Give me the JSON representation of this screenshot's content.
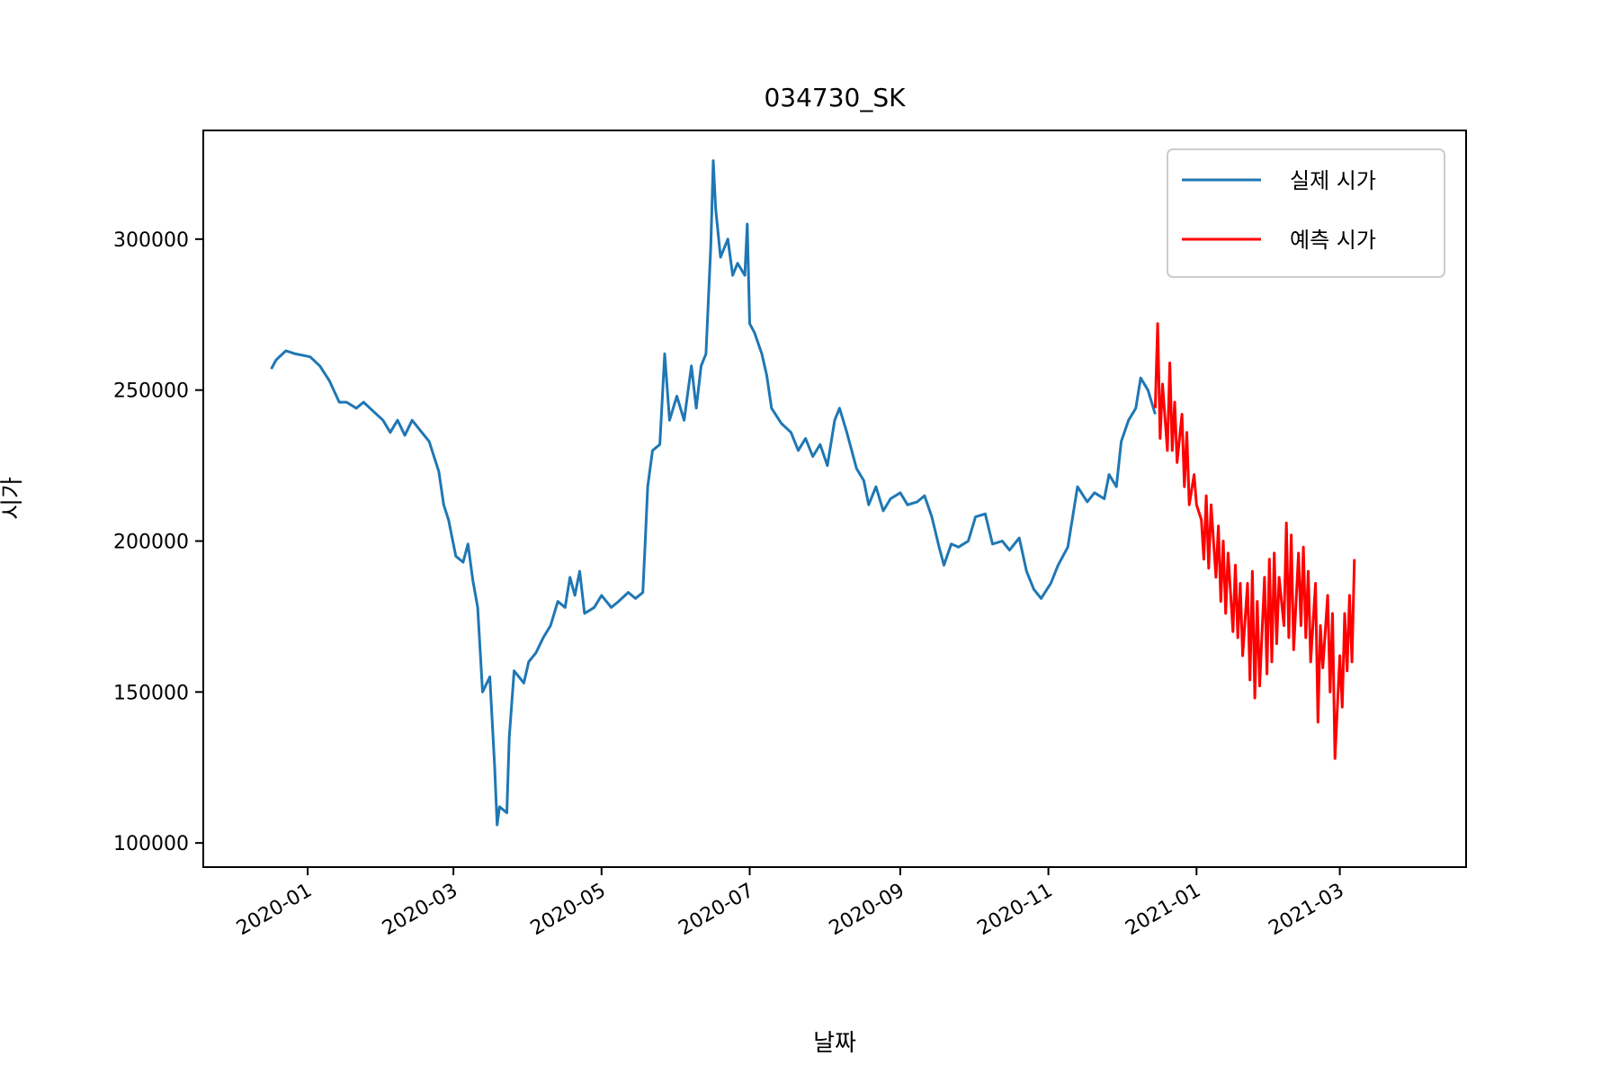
{
  "chart_data": {
    "type": "line",
    "title": "034730_SK",
    "xlabel": "날짜",
    "ylabel": "시가",
    "grid": false,
    "legend_position": "top-right",
    "x_type": "date",
    "xlim": [
      "2019-11-19",
      "2021-04-22"
    ],
    "ylim": [
      92000,
      336000
    ],
    "x_ticks": [
      "2020-01",
      "2020-03",
      "2020-05",
      "2020-07",
      "2020-09",
      "2020-11",
      "2021-01",
      "2021-03"
    ],
    "y_ticks": [
      100000,
      150000,
      200000,
      250000,
      300000
    ],
    "series": [
      {
        "name": "실제 시가",
        "color": "#1f77b4",
        "points": [
          [
            "2019-12-17",
            257000
          ],
          [
            "2019-12-19",
            260000
          ],
          [
            "2019-12-23",
            263000
          ],
          [
            "2019-12-27",
            262000
          ],
          [
            "2020-01-02",
            261000
          ],
          [
            "2020-01-06",
            258000
          ],
          [
            "2020-01-10",
            253000
          ],
          [
            "2020-01-14",
            246000
          ],
          [
            "2020-01-17",
            246000
          ],
          [
            "2020-01-21",
            244000
          ],
          [
            "2020-01-24",
            246000
          ],
          [
            "2020-01-28",
            243000
          ],
          [
            "2020-02-01",
            240000
          ],
          [
            "2020-02-04",
            236000
          ],
          [
            "2020-02-07",
            240000
          ],
          [
            "2020-02-10",
            235000
          ],
          [
            "2020-02-13",
            240000
          ],
          [
            "2020-02-17",
            236000
          ],
          [
            "2020-02-20",
            233000
          ],
          [
            "2020-02-24",
            223000
          ],
          [
            "2020-02-26",
            212000
          ],
          [
            "2020-02-28",
            207000
          ],
          [
            "2020-03-02",
            195000
          ],
          [
            "2020-03-05",
            193000
          ],
          [
            "2020-03-07",
            199000
          ],
          [
            "2020-03-09",
            187000
          ],
          [
            "2020-03-11",
            178000
          ],
          [
            "2020-03-13",
            150000
          ],
          [
            "2020-03-16",
            155000
          ],
          [
            "2020-03-17",
            140000
          ],
          [
            "2020-03-18",
            125000
          ],
          [
            "2020-03-19",
            106000
          ],
          [
            "2020-03-20",
            112000
          ],
          [
            "2020-03-23",
            110000
          ],
          [
            "2020-03-24",
            135000
          ],
          [
            "2020-03-26",
            157000
          ],
          [
            "2020-03-30",
            153000
          ],
          [
            "2020-04-01",
            160000
          ],
          [
            "2020-04-04",
            163000
          ],
          [
            "2020-04-07",
            168000
          ],
          [
            "2020-04-10",
            172000
          ],
          [
            "2020-04-13",
            180000
          ],
          [
            "2020-04-16",
            178000
          ],
          [
            "2020-04-18",
            188000
          ],
          [
            "2020-04-20",
            182000
          ],
          [
            "2020-04-22",
            190000
          ],
          [
            "2020-04-24",
            176000
          ],
          [
            "2020-04-28",
            178000
          ],
          [
            "2020-05-01",
            182000
          ],
          [
            "2020-05-05",
            178000
          ],
          [
            "2020-05-08",
            180000
          ],
          [
            "2020-05-12",
            183000
          ],
          [
            "2020-05-15",
            181000
          ],
          [
            "2020-05-18",
            183000
          ],
          [
            "2020-05-19",
            200000
          ],
          [
            "2020-05-20",
            218000
          ],
          [
            "2020-05-22",
            230000
          ],
          [
            "2020-05-25",
            232000
          ],
          [
            "2020-05-27",
            262000
          ],
          [
            "2020-05-29",
            240000
          ],
          [
            "2020-06-01",
            248000
          ],
          [
            "2020-06-04",
            240000
          ],
          [
            "2020-06-07",
            258000
          ],
          [
            "2020-06-09",
            244000
          ],
          [
            "2020-06-11",
            258000
          ],
          [
            "2020-06-13",
            262000
          ],
          [
            "2020-06-15",
            298000
          ],
          [
            "2020-06-16",
            326000
          ],
          [
            "2020-06-17",
            310000
          ],
          [
            "2020-06-19",
            294000
          ],
          [
            "2020-06-22",
            300000
          ],
          [
            "2020-06-24",
            288000
          ],
          [
            "2020-06-26",
            292000
          ],
          [
            "2020-06-29",
            288000
          ],
          [
            "2020-06-30",
            305000
          ],
          [
            "2020-07-01",
            272000
          ],
          [
            "2020-07-03",
            269000
          ],
          [
            "2020-07-06",
            262000
          ],
          [
            "2020-07-08",
            255000
          ],
          [
            "2020-07-10",
            244000
          ],
          [
            "2020-07-14",
            239000
          ],
          [
            "2020-07-18",
            236000
          ],
          [
            "2020-07-21",
            230000
          ],
          [
            "2020-07-24",
            234000
          ],
          [
            "2020-07-27",
            228000
          ],
          [
            "2020-07-30",
            232000
          ],
          [
            "2020-08-02",
            225000
          ],
          [
            "2020-08-05",
            240000
          ],
          [
            "2020-08-07",
            244000
          ],
          [
            "2020-08-10",
            236000
          ],
          [
            "2020-08-12",
            230000
          ],
          [
            "2020-08-14",
            224000
          ],
          [
            "2020-08-17",
            220000
          ],
          [
            "2020-08-19",
            212000
          ],
          [
            "2020-08-22",
            218000
          ],
          [
            "2020-08-25",
            210000
          ],
          [
            "2020-08-28",
            214000
          ],
          [
            "2020-09-01",
            216000
          ],
          [
            "2020-09-04",
            212000
          ],
          [
            "2020-09-08",
            213000
          ],
          [
            "2020-09-11",
            215000
          ],
          [
            "2020-09-14",
            208000
          ],
          [
            "2020-09-17",
            198000
          ],
          [
            "2020-09-19",
            192000
          ],
          [
            "2020-09-22",
            199000
          ],
          [
            "2020-09-25",
            198000
          ],
          [
            "2020-09-29",
            200000
          ],
          [
            "2020-10-02",
            208000
          ],
          [
            "2020-10-06",
            209000
          ],
          [
            "2020-10-09",
            199000
          ],
          [
            "2020-10-13",
            200000
          ],
          [
            "2020-10-16",
            197000
          ],
          [
            "2020-10-20",
            201000
          ],
          [
            "2020-10-23",
            190000
          ],
          [
            "2020-10-26",
            184000
          ],
          [
            "2020-10-29",
            181000
          ],
          [
            "2020-11-02",
            186000
          ],
          [
            "2020-11-05",
            192000
          ],
          [
            "2020-11-09",
            198000
          ],
          [
            "2020-11-11",
            208000
          ],
          [
            "2020-11-13",
            218000
          ],
          [
            "2020-11-17",
            213000
          ],
          [
            "2020-11-20",
            216000
          ],
          [
            "2020-11-24",
            214000
          ],
          [
            "2020-11-26",
            222000
          ],
          [
            "2020-11-29",
            218000
          ],
          [
            "2020-12-01",
            233000
          ],
          [
            "2020-12-04",
            240000
          ],
          [
            "2020-12-07",
            244000
          ],
          [
            "2020-12-09",
            254000
          ],
          [
            "2020-12-12",
            250000
          ],
          [
            "2020-12-15",
            242000
          ]
        ]
      },
      {
        "name": "예측 시가",
        "color": "#ff0000",
        "points": [
          [
            "2020-12-15",
            244000
          ],
          [
            "2020-12-16",
            272000
          ],
          [
            "2020-12-17",
            234000
          ],
          [
            "2020-12-18",
            252000
          ],
          [
            "2020-12-20",
            230000
          ],
          [
            "2020-12-21",
            259000
          ],
          [
            "2020-12-22",
            230000
          ],
          [
            "2020-12-23",
            246000
          ],
          [
            "2020-12-24",
            226000
          ],
          [
            "2020-12-26",
            242000
          ],
          [
            "2020-12-27",
            218000
          ],
          [
            "2020-12-28",
            236000
          ],
          [
            "2020-12-29",
            212000
          ],
          [
            "2020-12-31",
            222000
          ],
          [
            "2021-01-01",
            212000
          ],
          [
            "2021-01-03",
            207000
          ],
          [
            "2021-01-04",
            194000
          ],
          [
            "2021-01-05",
            215000
          ],
          [
            "2021-01-06",
            191000
          ],
          [
            "2021-01-07",
            212000
          ],
          [
            "2021-01-09",
            188000
          ],
          [
            "2021-01-10",
            205000
          ],
          [
            "2021-01-11",
            180000
          ],
          [
            "2021-01-12",
            200000
          ],
          [
            "2021-01-13",
            176000
          ],
          [
            "2021-01-14",
            196000
          ],
          [
            "2021-01-16",
            170000
          ],
          [
            "2021-01-17",
            192000
          ],
          [
            "2021-01-18",
            168000
          ],
          [
            "2021-01-19",
            186000
          ],
          [
            "2021-01-20",
            162000
          ],
          [
            "2021-01-22",
            186000
          ],
          [
            "2021-01-23",
            154000
          ],
          [
            "2021-01-24",
            190000
          ],
          [
            "2021-01-25",
            148000
          ],
          [
            "2021-01-26",
            180000
          ],
          [
            "2021-01-27",
            152000
          ],
          [
            "2021-01-29",
            188000
          ],
          [
            "2021-01-30",
            156000
          ],
          [
            "2021-01-31",
            194000
          ],
          [
            "2021-02-01",
            160000
          ],
          [
            "2021-02-02",
            196000
          ],
          [
            "2021-02-03",
            166000
          ],
          [
            "2021-02-04",
            188000
          ],
          [
            "2021-02-06",
            172000
          ],
          [
            "2021-02-07",
            206000
          ],
          [
            "2021-02-08",
            168000
          ],
          [
            "2021-02-09",
            202000
          ],
          [
            "2021-02-10",
            164000
          ],
          [
            "2021-02-12",
            196000
          ],
          [
            "2021-02-13",
            172000
          ],
          [
            "2021-02-14",
            198000
          ],
          [
            "2021-02-15",
            168000
          ],
          [
            "2021-02-16",
            190000
          ],
          [
            "2021-02-17",
            160000
          ],
          [
            "2021-02-19",
            186000
          ],
          [
            "2021-02-20",
            140000
          ],
          [
            "2021-02-21",
            172000
          ],
          [
            "2021-02-22",
            158000
          ],
          [
            "2021-02-24",
            182000
          ],
          [
            "2021-02-25",
            150000
          ],
          [
            "2021-02-26",
            176000
          ],
          [
            "2021-02-27",
            128000
          ],
          [
            "2021-03-01",
            162000
          ],
          [
            "2021-03-02",
            145000
          ],
          [
            "2021-03-03",
            176000
          ],
          [
            "2021-03-04",
            157000
          ],
          [
            "2021-03-05",
            182000
          ],
          [
            "2021-03-06",
            160000
          ],
          [
            "2021-03-07",
            194000
          ]
        ]
      }
    ]
  }
}
